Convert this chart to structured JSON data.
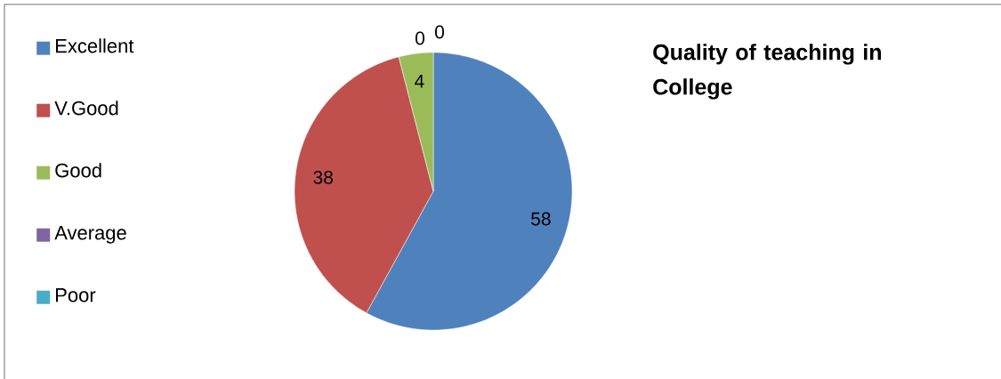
{
  "chart_data": {
    "type": "pie",
    "title": "Quality of teaching  in College",
    "categories": [
      "Excellent",
      "V.Good",
      "Good",
      "Average",
      "Poor"
    ],
    "values": [
      58,
      38,
      4,
      0,
      0
    ],
    "value_labels": [
      "58",
      "38",
      "4",
      "0",
      "0"
    ],
    "colors": [
      "#4f81bd",
      "#c0504d",
      "#9bbb59",
      "#8064a2",
      "#4bacc6"
    ],
    "legend": "left"
  }
}
